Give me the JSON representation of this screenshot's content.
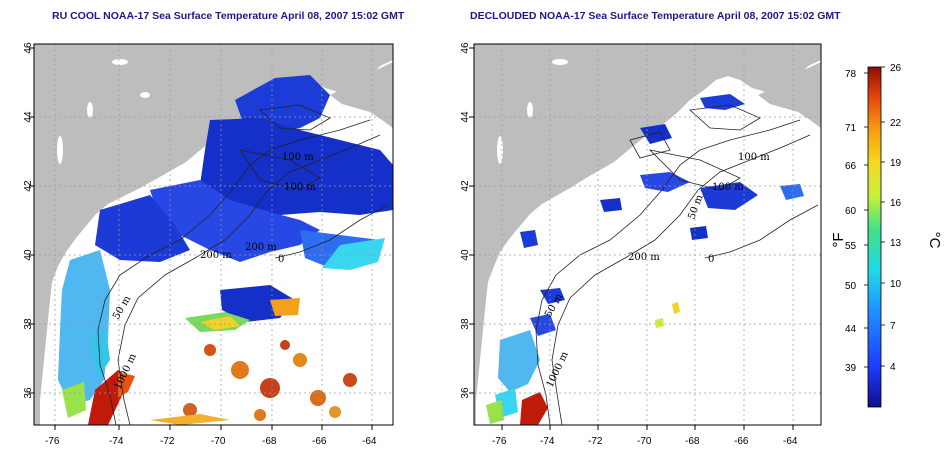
{
  "panels": [
    {
      "id": "left",
      "title": "RU COOL NOAA-17 Sea Surface Temperature April 08, 2007 15:02 GMT",
      "contour_labels": [
        "100 m",
        "100 m",
        "200 m",
        "200 m",
        "50 m",
        "1000 m",
        "0"
      ]
    },
    {
      "id": "right",
      "title": "DECLOUDED NOAA-17 Sea Surface Temperature April 08, 2007 15:02 GMT",
      "contour_labels": [
        "100 m",
        "100 m",
        "50 m",
        "200 m",
        "50 m",
        "1000 m",
        "0"
      ]
    }
  ],
  "axes": {
    "x_ticks": [
      "-76",
      "-74",
      "-72",
      "-70",
      "-68",
      "-66",
      "-64"
    ],
    "y_ticks": [
      "36",
      "38",
      "40",
      "42",
      "44",
      "46"
    ]
  },
  "colorbar": {
    "fahrenheit_ticks": [
      "78",
      "71",
      "66",
      "60",
      "55",
      "50",
      "44",
      "39"
    ],
    "celsius_ticks": [
      "26",
      "22",
      "19",
      "16",
      "13",
      "10",
      "7",
      "4"
    ],
    "fahrenheit_unit": "°F",
    "celsius_unit": "°C"
  },
  "colors": {
    "land": "#bdbdbd",
    "title": "#1a1a8c",
    "cold": "#1530d0",
    "warm": "#c01a0a"
  }
}
